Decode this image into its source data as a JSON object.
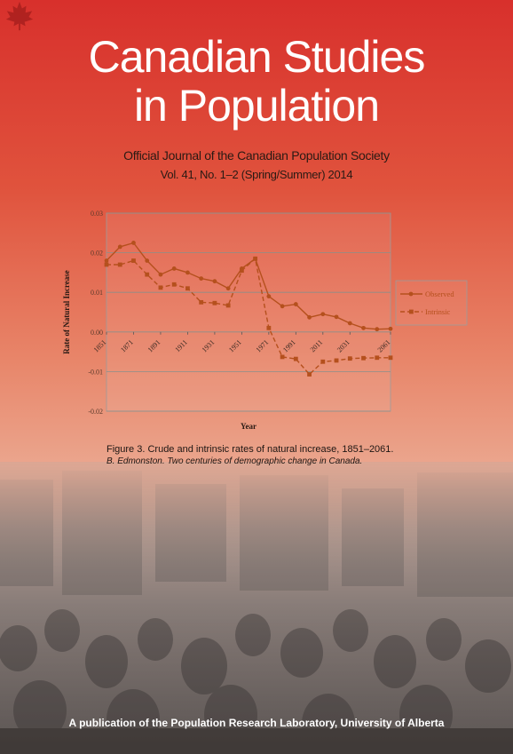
{
  "journal": {
    "title_line1": "Canadian Studies",
    "title_line2": "in Population",
    "subtitle": "Official Journal of the Canadian Population Society",
    "issue": "Vol. 41, No. 1–2 (Spring/Summer) 2014",
    "publisher": "A publication of the Population Research Laboratory, University of Alberta"
  },
  "figure": {
    "caption": "Figure 3. Crude and intrinsic rates of natural increase, 1851–2061.",
    "citation": "B. Edmonston. Two centuries of demographic change in Canada."
  },
  "icons": {
    "logo": "maple-leaf-icon"
  },
  "colors": {
    "series": "#b5501d",
    "brand": "#d8302c"
  },
  "chart_data": {
    "type": "line",
    "xlabel": "Year",
    "ylabel": "Rate of Natural Increase",
    "ylim": [
      -0.02,
      0.03
    ],
    "yticks": [
      "0.03",
      "0.02",
      "0.01",
      "0.00",
      "-0.01",
      "-0.02"
    ],
    "xticks": [
      "1851",
      "1871",
      "1891",
      "1911",
      "1931",
      "1951",
      "1971",
      "1991",
      "2011",
      "2031",
      "2061"
    ],
    "grid": true,
    "legend": "right",
    "x": [
      1851,
      1861,
      1871,
      1881,
      1891,
      1901,
      1911,
      1921,
      1931,
      1941,
      1951,
      1961,
      1971,
      1981,
      1991,
      2001,
      2011,
      2021,
      2031,
      2041,
      2051,
      2061
    ],
    "series": [
      {
        "name": "Observed",
        "values": [
          0.018,
          0.0215,
          0.0225,
          0.018,
          0.0145,
          0.016,
          0.015,
          0.0135,
          0.0128,
          0.011,
          0.016,
          0.0185,
          0.009,
          0.0065,
          0.007,
          0.0037,
          0.0045,
          0.0038,
          0.0022,
          0.001,
          0.0007,
          0.0008
        ]
      },
      {
        "name": "Intrinsic",
        "values": [
          0.017,
          0.017,
          0.018,
          0.0145,
          0.0112,
          0.012,
          0.011,
          0.0075,
          0.0073,
          0.0067,
          0.0155,
          0.0185,
          0.001,
          -0.0063,
          -0.0068,
          -0.0107,
          -0.0075,
          -0.0072,
          -0.0067,
          -0.0066,
          -0.0065,
          -0.0065
        ]
      }
    ]
  }
}
